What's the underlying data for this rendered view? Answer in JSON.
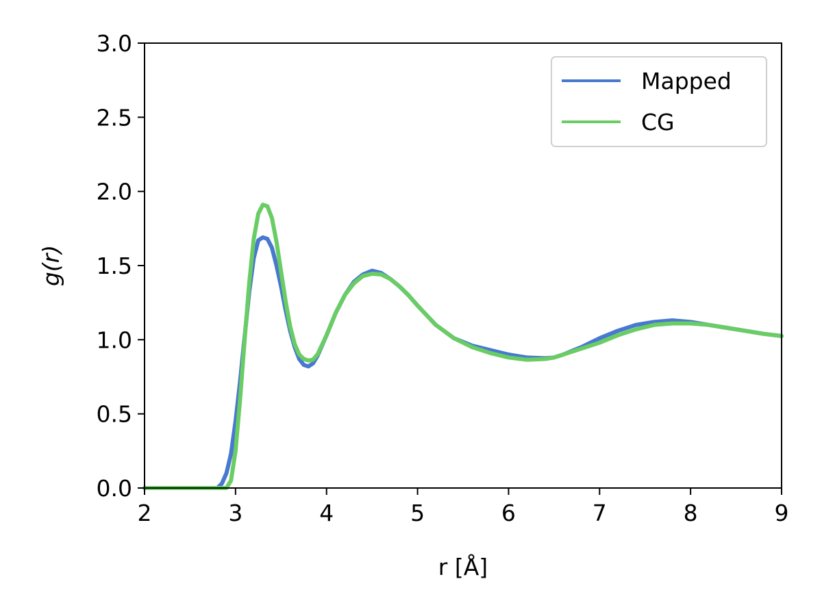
{
  "chart_data": {
    "type": "line",
    "title": "",
    "xlabel": "r [Å]",
    "ylabel": "g(r)",
    "xlim": [
      2,
      9
    ],
    "ylim": [
      0,
      3
    ],
    "xticks": [
      2,
      3,
      4,
      5,
      6,
      7,
      8,
      9
    ],
    "yticks": [
      0.0,
      0.5,
      1.0,
      1.5,
      2.0,
      2.5,
      3.0
    ],
    "xtick_labels": [
      "2",
      "3",
      "4",
      "5",
      "6",
      "7",
      "8",
      "9"
    ],
    "ytick_labels": [
      "0.0",
      "0.5",
      "1.0",
      "1.5",
      "2.0",
      "2.5",
      "3.0"
    ],
    "grid": false,
    "legend_position": "top-right",
    "series": [
      {
        "name": "Mapped",
        "color": "#4878d0",
        "x": [
          2.0,
          2.5,
          2.8,
          2.85,
          2.9,
          2.95,
          3.0,
          3.05,
          3.1,
          3.15,
          3.2,
          3.25,
          3.3,
          3.35,
          3.4,
          3.45,
          3.5,
          3.55,
          3.6,
          3.65,
          3.7,
          3.75,
          3.8,
          3.85,
          3.9,
          4.0,
          4.1,
          4.2,
          4.3,
          4.4,
          4.5,
          4.6,
          4.7,
          4.8,
          4.9,
          5.0,
          5.2,
          5.4,
          5.6,
          5.8,
          6.0,
          6.2,
          6.4,
          6.5,
          6.6,
          6.8,
          7.0,
          7.2,
          7.4,
          7.6,
          7.8,
          8.0,
          8.2,
          8.4,
          8.6,
          8.8,
          9.0
        ],
        "y": [
          0.0,
          0.0,
          0.0,
          0.03,
          0.1,
          0.23,
          0.45,
          0.72,
          1.02,
          1.32,
          1.55,
          1.67,
          1.69,
          1.68,
          1.62,
          1.5,
          1.36,
          1.2,
          1.06,
          0.95,
          0.87,
          0.83,
          0.82,
          0.84,
          0.89,
          1.03,
          1.18,
          1.3,
          1.39,
          1.44,
          1.465,
          1.45,
          1.41,
          1.36,
          1.3,
          1.23,
          1.1,
          1.01,
          0.96,
          0.93,
          0.9,
          0.88,
          0.875,
          0.88,
          0.9,
          0.95,
          1.01,
          1.06,
          1.1,
          1.12,
          1.13,
          1.12,
          1.1,
          1.08,
          1.06,
          1.04,
          1.025
        ]
      },
      {
        "name": "CG",
        "color": "#6acc64",
        "x": [
          2.0,
          2.5,
          2.9,
          2.95,
          3.0,
          3.05,
          3.1,
          3.15,
          3.2,
          3.25,
          3.3,
          3.35,
          3.4,
          3.45,
          3.5,
          3.55,
          3.6,
          3.65,
          3.7,
          3.75,
          3.8,
          3.85,
          3.9,
          4.0,
          4.1,
          4.2,
          4.3,
          4.4,
          4.5,
          4.6,
          4.7,
          4.8,
          4.9,
          5.0,
          5.2,
          5.4,
          5.6,
          5.8,
          6.0,
          6.2,
          6.4,
          6.5,
          6.6,
          6.8,
          7.0,
          7.2,
          7.4,
          7.6,
          7.8,
          8.0,
          8.2,
          8.4,
          8.6,
          8.8,
          9.0
        ],
        "y": [
          0.0,
          0.0,
          0.0,
          0.05,
          0.25,
          0.6,
          1.0,
          1.38,
          1.68,
          1.85,
          1.91,
          1.9,
          1.82,
          1.66,
          1.46,
          1.26,
          1.09,
          0.97,
          0.9,
          0.87,
          0.86,
          0.865,
          0.9,
          1.03,
          1.18,
          1.3,
          1.38,
          1.43,
          1.445,
          1.44,
          1.41,
          1.36,
          1.3,
          1.23,
          1.1,
          1.01,
          0.95,
          0.91,
          0.88,
          0.865,
          0.87,
          0.88,
          0.9,
          0.94,
          0.98,
          1.03,
          1.07,
          1.1,
          1.11,
          1.11,
          1.1,
          1.08,
          1.06,
          1.04,
          1.025
        ]
      }
    ]
  }
}
